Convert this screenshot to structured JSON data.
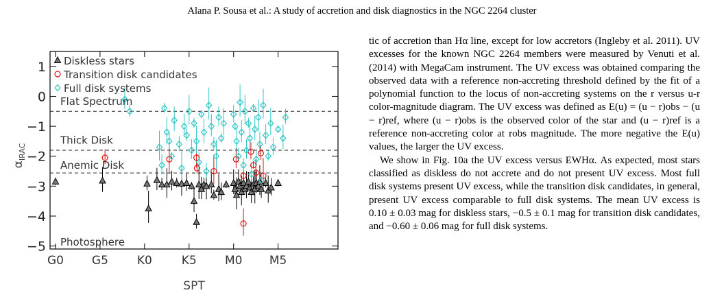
{
  "running_head": "Alana P. Sousa  et al.: A study of accretion and disk diagnostics in the NGC 2264 cluster",
  "figure": {
    "legend": [
      {
        "label": "Diskless stars",
        "marker": "triangle",
        "color": "#000000"
      },
      {
        "label": "Transition disk candidates",
        "marker": "circle",
        "color": "#e01010"
      },
      {
        "label": "Full disk systems",
        "marker": "diamond",
        "color": "#2ec6c6"
      }
    ],
    "region_labels": [
      "Flat Spectrum",
      "Thick Disk",
      "Anemic Disk",
      "Photosphere"
    ]
  },
  "chart_data": {
    "type": "scatter",
    "xlabel": "SPT",
    "ylabel": "α_IRAC",
    "ylim": [
      -5.1,
      1.5
    ],
    "xlim": [
      0,
      56
    ],
    "x_ticks": [
      {
        "label": "G0",
        "pos": 0
      },
      {
        "label": "G5",
        "pos": 9
      },
      {
        "label": "K0",
        "pos": 18
      },
      {
        "label": "K5",
        "pos": 27
      },
      {
        "label": "M0",
        "pos": 36
      },
      {
        "label": "M5",
        "pos": 45
      }
    ],
    "y_ticks": [
      1,
      0,
      -1,
      -2,
      -3,
      -4,
      -5
    ],
    "thresholds": [
      -0.5,
      -1.8,
      -2.56
    ],
    "series": [
      {
        "name": "Diskless stars",
        "color": "#000000",
        "points": [
          [
            0,
            -2.85
          ],
          [
            9.5,
            -2.82
          ],
          [
            18.5,
            -2.92
          ],
          [
            18.8,
            -3.75
          ],
          [
            20.5,
            -2.8
          ],
          [
            21.5,
            -2.95
          ],
          [
            22.5,
            -2.95
          ],
          [
            23.5,
            -2.85
          ],
          [
            24.5,
            -2.9
          ],
          [
            25.5,
            -2.92
          ],
          [
            26.5,
            -2.9
          ],
          [
            27.5,
            -3.0
          ],
          [
            28.0,
            -3.5
          ],
          [
            28.5,
            -4.2
          ],
          [
            29.0,
            -2.95
          ],
          [
            29.5,
            -3.1
          ],
          [
            30.0,
            -2.95
          ],
          [
            30.5,
            -3.0
          ],
          [
            31.5,
            -2.95
          ],
          [
            32.0,
            -3.3
          ],
          [
            33.0,
            -3.1
          ],
          [
            33.5,
            -3.2
          ],
          [
            34.5,
            -2.95
          ],
          [
            36.0,
            -2.9
          ],
          [
            36.3,
            -3.1
          ],
          [
            36.6,
            -3.3
          ],
          [
            37.0,
            -2.85
          ],
          [
            37.3,
            -3.0
          ],
          [
            37.6,
            -3.2
          ],
          [
            38.0,
            -2.9
          ],
          [
            38.3,
            -3.1
          ],
          [
            38.6,
            -3.0
          ],
          [
            39.0,
            -2.85
          ],
          [
            39.3,
            -3.05
          ],
          [
            39.6,
            -3.2
          ],
          [
            40.0,
            -2.95
          ],
          [
            40.3,
            -3.1
          ],
          [
            40.6,
            -2.9
          ],
          [
            41.0,
            -3.0
          ],
          [
            41.3,
            -2.85
          ],
          [
            41.6,
            -3.1
          ],
          [
            42.5,
            -2.9
          ],
          [
            43.0,
            -3.15
          ],
          [
            43.6,
            -3.05
          ],
          [
            45.0,
            -2.9
          ]
        ]
      },
      {
        "name": "Transition disk candidates",
        "color": "#e01010",
        "points": [
          [
            10.0,
            -2.05
          ],
          [
            23.0,
            -2.1
          ],
          [
            28.5,
            -2.05
          ],
          [
            28.6,
            -2.4
          ],
          [
            32.0,
            -2.5
          ],
          [
            36.5,
            -2.1
          ],
          [
            38.0,
            -2.65
          ],
          [
            38.0,
            -4.25
          ],
          [
            39.5,
            -1.85
          ],
          [
            40.0,
            -2.3
          ],
          [
            40.5,
            -2.55
          ],
          [
            41.5,
            -1.9
          ],
          [
            42.0,
            -2.65
          ]
        ]
      },
      {
        "name": "Full disk systems",
        "color": "#2ec6c6",
        "points": [
          [
            14.0,
            -0.1
          ],
          [
            15.0,
            -0.5
          ],
          [
            21.0,
            -1.7
          ],
          [
            21.5,
            -2.3
          ],
          [
            22.0,
            -0.4
          ],
          [
            22.5,
            -1.2
          ],
          [
            23.0,
            -1.5
          ],
          [
            23.5,
            -2.0
          ],
          [
            24.0,
            -0.8
          ],
          [
            25.0,
            -1.6
          ],
          [
            25.5,
            -2.4
          ],
          [
            26.0,
            -1.0
          ],
          [
            26.5,
            -1.3
          ],
          [
            27.0,
            -0.5
          ],
          [
            27.5,
            -1.8
          ],
          [
            28.0,
            -0.9
          ],
          [
            28.5,
            -1.5
          ],
          [
            29.0,
            -2.2
          ],
          [
            29.5,
            -0.6
          ],
          [
            30.0,
            -1.2
          ],
          [
            30.5,
            -2.5
          ],
          [
            31.0,
            -0.3
          ],
          [
            31.5,
            -1.0
          ],
          [
            32.0,
            -1.6
          ],
          [
            32.5,
            -2.0
          ],
          [
            33.0,
            -0.7
          ],
          [
            33.5,
            -1.4
          ],
          [
            34.0,
            -0.9
          ],
          [
            36.0,
            -0.6
          ],
          [
            36.3,
            -1.0
          ],
          [
            36.6,
            -1.5
          ],
          [
            37.0,
            -2.0
          ],
          [
            37.3,
            -0.2
          ],
          [
            37.6,
            -1.2
          ],
          [
            38.0,
            -2.3
          ],
          [
            38.3,
            -0.5
          ],
          [
            38.6,
            -1.8
          ],
          [
            39.0,
            -0.9
          ],
          [
            39.3,
            -1.4
          ],
          [
            39.6,
            -2.6
          ],
          [
            40.0,
            -0.4
          ],
          [
            40.3,
            -1.1
          ],
          [
            40.6,
            -2.1
          ],
          [
            41.0,
            -0.7
          ],
          [
            41.3,
            -1.6
          ],
          [
            41.6,
            -2.8
          ],
          [
            42.0,
            -0.3
          ],
          [
            42.5,
            -1.3
          ],
          [
            43.0,
            -2.0
          ],
          [
            43.5,
            -0.9
          ],
          [
            44.0,
            -1.7
          ],
          [
            45.0,
            -1.1
          ],
          [
            46.0,
            -1.4
          ],
          [
            46.5,
            -0.7
          ]
        ]
      }
    ]
  },
  "text": {
    "p1": "tic of accretion than Hα line, except for low accretors (Ingleby et al. 2011). UV excesses for the known NGC 2264 members were measured by Venuti et al. (2014) with MegaCam instrument. The UV excess was obtained comparing the observed data with a reference non-accreting threshold defined by the fit of a polynomial function to the locus of non-accreting systems on the r versus u-r color-magnitude diagram. The UV excess was defined as E(u) = (u − r)obs − (u − r)ref, where (u − r)obs is the observed color of the star and (u − r)ref is a reference non-accreting color at robs magnitude. The more negative the E(u) values, the larger the UV excess.",
    "p2": "We show in Fig. 10a the UV excess versus EWHα. As expected, most stars classified as diskless do not accrete and do not present UV excess. Most full disk systems present UV excess, while the transition disk candidates, in general, present UV excess comparable to full disk systems. The mean UV excess is 0.10 ± 0.03 mag for diskless stars, −0.5 ± 0.1 mag for transition disk candidates, and −0.60 ± 0.06 mag for full disk systems."
  }
}
